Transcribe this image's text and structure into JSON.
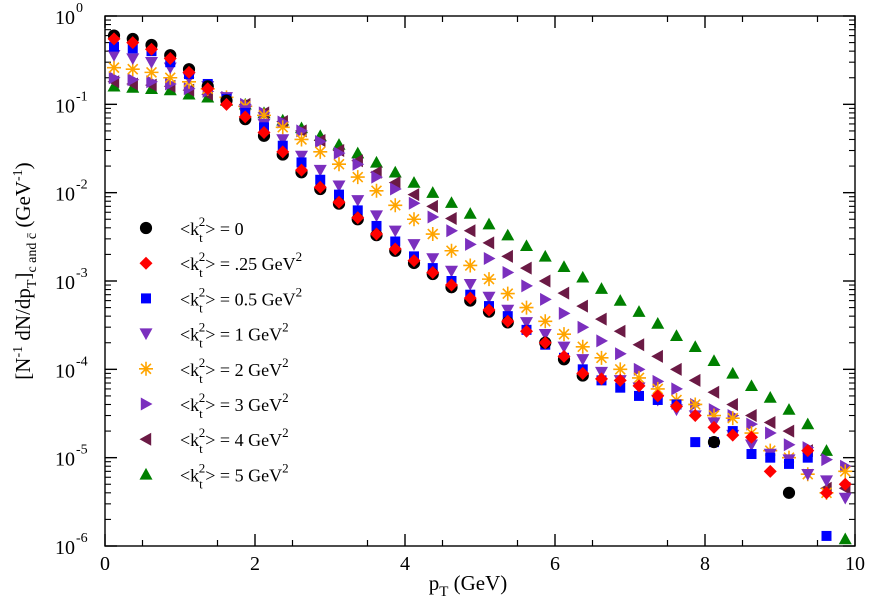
{
  "chart_data": {
    "type": "scatter",
    "xlabel": "p_T (GeV)",
    "ylabel": "[N^-1 dN/dp_T]_c and c̄ (GeV^-1)",
    "x_scale": "linear",
    "y_scale": "log",
    "xlim": [
      0,
      10
    ],
    "ylim": [
      1e-06,
      1
    ],
    "x_ticks": [
      0,
      2,
      4,
      6,
      8,
      10
    ],
    "y_ticks": [
      {
        "value": 1.0,
        "base": "10",
        "exp": "0"
      },
      {
        "value": 0.1,
        "base": "10",
        "exp": "-1"
      },
      {
        "value": 0.01,
        "base": "10",
        "exp": "-2"
      },
      {
        "value": 0.001,
        "base": "10",
        "exp": "-3"
      },
      {
        "value": 0.0001,
        "base": "10",
        "exp": "-4"
      },
      {
        "value": 1e-05,
        "base": "10",
        "exp": "-5"
      },
      {
        "value": 1e-06,
        "base": "10",
        "exp": "-6"
      }
    ],
    "x_label_parts": {
      "p": "p",
      "sub": "T",
      "rest": " (GeV)"
    },
    "y_label_parts": {
      "open": "[N",
      "exp1": "-1",
      "mid": " dN/dp",
      "sub1": "T",
      "close": "]",
      "sub2": "c and c̄",
      "unit": " (GeV",
      "exp2": "-1",
      "end": ")"
    },
    "legend_position": "left-middle",
    "x": [
      0.12,
      0.37,
      0.62,
      0.87,
      1.12,
      1.37,
      1.62,
      1.87,
      2.12,
      2.37,
      2.62,
      2.87,
      3.12,
      3.37,
      3.62,
      3.87,
      4.12,
      4.37,
      4.62,
      4.87,
      5.12,
      5.37,
      5.62,
      5.87,
      6.12,
      6.37,
      6.62,
      6.87,
      7.12,
      7.37,
      7.62,
      7.87,
      8.12,
      8.37,
      8.62,
      8.87,
      9.12,
      9.37,
      9.62,
      9.87
    ],
    "series": [
      {
        "name": "k0",
        "label_pre": "<k",
        "label_sub": "t",
        "label_sup": "2",
        "label_post": "> = 0",
        "label_unit": "",
        "unit_sup": "",
        "marker": "circle",
        "color": "#000000",
        "values": [
          0.6,
          0.55,
          0.47,
          0.36,
          0.25,
          0.16,
          0.11,
          0.068,
          0.044,
          0.027,
          0.017,
          0.011,
          0.0075,
          0.005,
          0.0033,
          0.0022,
          0.0016,
          0.0012,
          0.00085,
          0.0006,
          0.00045,
          0.00034,
          null,
          0.0002,
          0.00013,
          8.5e-05,
          null,
          null,
          null,
          null,
          null,
          null,
          1.5e-05,
          null,
          null,
          null,
          4e-06,
          null,
          null,
          null
        ]
      },
      {
        "name": "k025",
        "label_pre": "<k",
        "label_sub": "t",
        "label_sup": "2",
        "label_post": "> = .25 GeV",
        "label_unit": "",
        "unit_sup": "2",
        "marker": "diamond",
        "color": "#ff0000",
        "values": [
          0.55,
          0.5,
          0.42,
          0.33,
          0.23,
          0.15,
          0.1,
          0.072,
          0.048,
          0.029,
          0.018,
          0.0115,
          0.0078,
          0.0052,
          0.0034,
          0.0023,
          0.0017,
          0.00125,
          0.0009,
          0.00064,
          0.00047,
          0.00035,
          0.00027,
          0.0002,
          0.00014,
          9e-05,
          7.8e-05,
          7.5e-05,
          6.5e-05,
          5e-05,
          3.8e-05,
          3e-05,
          2.2e-05,
          1.8e-05,
          1.7e-05,
          7e-06,
          null,
          1.2e-05,
          4e-06,
          5e-06
        ]
      },
      {
        "name": "k05",
        "label_pre": "<k",
        "label_sub": "t",
        "label_sup": "2",
        "label_post": "> = 0.5 GeV",
        "label_unit": "",
        "unit_sup": "2",
        "marker": "square",
        "color": "#0000ff",
        "values": [
          0.45,
          0.43,
          0.4,
          0.3,
          0.22,
          0.17,
          0.115,
          0.08,
          0.055,
          0.034,
          0.022,
          0.014,
          0.0095,
          0.0063,
          0.0042,
          0.0028,
          0.0019,
          0.0014,
          0.001,
          0.0007,
          0.00052,
          0.0004,
          0.00028,
          0.00019,
          0.000135,
          0.0001,
          7.5e-05,
          6.2e-05,
          5e-05,
          4.5e-05,
          4e-05,
          1.5e-05,
          1.5e-05,
          2e-05,
          1.1e-05,
          1e-05,
          8.5e-06,
          1e-05,
          1.3e-06,
          null
        ]
      },
      {
        "name": "k1",
        "label_pre": "<k",
        "label_sub": "t",
        "label_sup": "2",
        "label_post": "> = 1 GeV",
        "label_unit": "",
        "unit_sup": "2",
        "marker": "triangle-down",
        "color": "#7b2fbe",
        "values": [
          0.36,
          0.33,
          0.3,
          0.26,
          0.2,
          0.16,
          0.12,
          0.085,
          0.06,
          0.04,
          0.026,
          0.018,
          0.012,
          0.0082,
          0.0055,
          0.0037,
          0.0026,
          0.0018,
          0.0013,
          0.00092,
          0.00066,
          0.00047,
          0.00034,
          0.00025,
          0.00018,
          0.00013,
          9.3e-05,
          7.5e-05,
          6.2e-05,
          4.5e-05,
          3.5e-05,
          3e-05,
          2.5e-05,
          1.8e-05,
          1.4e-05,
          1.1e-05,
          9.5e-06,
          6.5e-06,
          5.5e-06,
          3.5e-06
        ]
      },
      {
        "name": "k2",
        "label_pre": "<k",
        "label_sub": "t",
        "label_sup": "2",
        "label_post": "> = 2 GeV",
        "label_unit": "",
        "unit_sup": "2",
        "marker": "star",
        "color": "#ffa500",
        "values": [
          0.26,
          0.25,
          0.23,
          0.2,
          0.18,
          0.15,
          0.12,
          0.095,
          0.075,
          0.055,
          0.04,
          0.029,
          0.021,
          0.015,
          0.0105,
          0.0072,
          0.005,
          0.0034,
          0.0022,
          0.0015,
          0.00105,
          0.00072,
          0.0005,
          0.00035,
          0.00025,
          0.00018,
          0.000135,
          0.0001,
          8e-05,
          6e-05,
          4.5e-05,
          4e-05,
          3e-05,
          2.8e-05,
          1.9e-05,
          1.2e-05,
          1e-05,
          6.5e-06,
          4e-06,
          7e-06
        ]
      },
      {
        "name": "k3",
        "label_pre": "<k",
        "label_sub": "t",
        "label_sup": "2",
        "label_post": "> = 3 GeV",
        "label_unit": "",
        "unit_sup": "2",
        "marker": "triangle-right",
        "color": "#7b2fbe",
        "values": [
          0.2,
          0.19,
          0.18,
          0.17,
          0.15,
          0.14,
          0.12,
          0.1,
          0.08,
          0.063,
          0.05,
          0.038,
          0.028,
          0.021,
          0.015,
          0.011,
          0.0076,
          0.0053,
          0.0037,
          0.0026,
          0.0018,
          0.00125,
          0.00088,
          0.00062,
          0.00043,
          0.0003,
          0.00021,
          0.00015,
          0.0001,
          7.3e-05,
          6e-05,
          4e-05,
          3.5e-05,
          3e-05,
          2.4e-05,
          1.9e-05,
          1.4e-05,
          1.3e-05,
          9.5e-06,
          8e-06
        ]
      },
      {
        "name": "k4",
        "label_pre": "<k",
        "label_sub": "t",
        "label_sup": "2",
        "label_post": "> = 4 GeV",
        "label_unit": "",
        "unit_sup": "2",
        "marker": "triangle-left",
        "color": "#6b1a45",
        "values": [
          0.18,
          0.17,
          0.165,
          0.16,
          0.145,
          0.13,
          0.115,
          0.1,
          0.08,
          0.064,
          0.05,
          0.039,
          0.03,
          0.023,
          0.017,
          0.013,
          0.0095,
          0.007,
          0.0051,
          0.0037,
          0.0027,
          0.0019,
          0.0014,
          0.001,
          0.00073,
          0.00052,
          0.00037,
          0.00027,
          0.00019,
          0.00014,
          0.0001,
          7.5e-05,
          5.5e-05,
          4e-05,
          3e-05,
          2.5e-05,
          2e-05,
          1.2e-05,
          4.5e-06,
          4.5e-06
        ]
      },
      {
        "name": "k5",
        "label_pre": "<k",
        "label_sub": "t",
        "label_sup": "2",
        "label_post": "> = 5 GeV",
        "label_unit": "",
        "unit_sup": "2",
        "marker": "triangle-up",
        "color": "#008000",
        "values": [
          0.16,
          0.155,
          0.15,
          0.145,
          0.13,
          0.12,
          0.11,
          0.1,
          0.08,
          0.066,
          0.054,
          0.044,
          0.035,
          0.028,
          0.022,
          0.017,
          0.013,
          0.01,
          0.0077,
          0.0058,
          0.0044,
          0.0033,
          0.0025,
          0.0019,
          0.00145,
          0.0011,
          0.00082,
          0.0006,
          0.00045,
          0.00033,
          0.00024,
          0.00018,
          0.000125,
          9e-05,
          6.5e-05,
          4.8e-05,
          3.5e-05,
          2.4e-05,
          1.2e-05,
          1.2e-06
        ]
      }
    ]
  }
}
